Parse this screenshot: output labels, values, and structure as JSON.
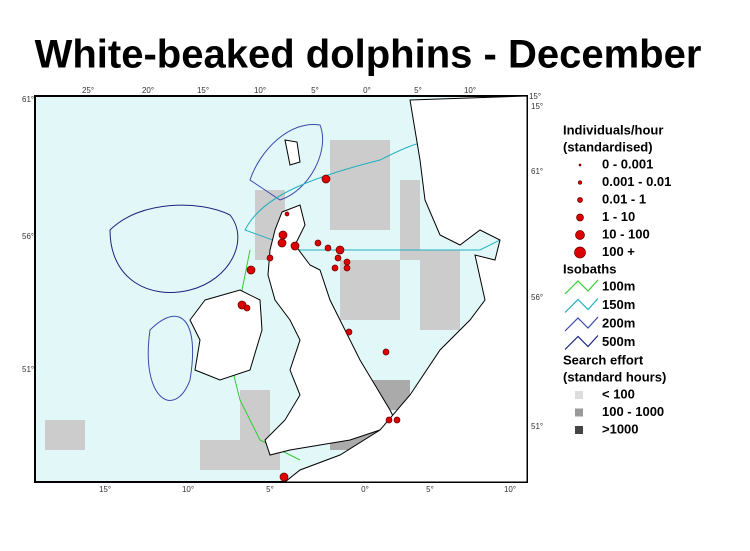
{
  "title": "White-beaked dolphins - December",
  "coordinates": {
    "top": [
      "25°",
      "20°",
      "15°",
      "10°",
      "5°",
      "0°",
      "5°",
      "10°",
      "15°"
    ],
    "bottom": [
      "15°",
      "10°",
      "5°",
      "0°",
      "5°",
      "10°"
    ],
    "left": [
      "61°",
      "56°",
      "51°"
    ],
    "right": [
      "15°",
      "61°",
      "56°",
      "51°"
    ]
  },
  "legend": {
    "individuals": {
      "title": "Individuals/hour",
      "subtitle": "(standardised)",
      "items": [
        "0 - 0.001",
        "0.001 - 0.01",
        "0.01 - 1",
        "1 - 10",
        "10 - 100",
        "100 +"
      ]
    },
    "isobaths": {
      "title": "Isobaths",
      "items": [
        "100m",
        "150m",
        "200m",
        "500m"
      ]
    },
    "effort": {
      "title": "Search effort",
      "subtitle": "(standard hours)",
      "items": [
        "< 100",
        "100 - 1000",
        ">1000"
      ]
    }
  }
}
